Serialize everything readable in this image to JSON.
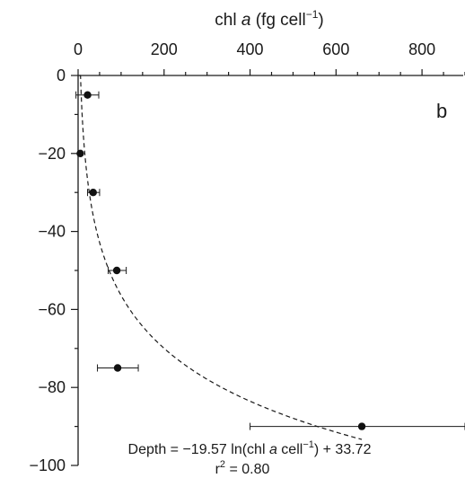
{
  "chart_data": {
    "type": "scatter",
    "title": "",
    "panel_label": "b",
    "xlabel_prefix": "chl ",
    "xlabel_italic": "a",
    "xlabel_units": " (fg cell",
    "xlabel_sup": "−1",
    "xlabel_close": ")",
    "ylabel": "",
    "x_axis_position": "top",
    "xlim": [
      0,
      900
    ],
    "ylim": [
      -100,
      0
    ],
    "x_ticks": [
      0,
      200,
      400,
      600,
      800
    ],
    "x_tick_labels": [
      "0",
      "200",
      "400",
      "600",
      "800"
    ],
    "y_ticks": [
      0,
      -20,
      -40,
      -60,
      -80,
      -100
    ],
    "y_tick_labels": [
      "0",
      "−20",
      "−40",
      "−60",
      "−80",
      "−100"
    ],
    "grid": false,
    "series": [
      {
        "points": [
          {
            "x": 22,
            "y": -5,
            "xerr_low": -5,
            "xerr_high": 48
          },
          {
            "x": 5,
            "y": -20,
            "xerr_low": 0,
            "xerr_high": 8
          },
          {
            "x": 35,
            "y": -30,
            "xerr_low": 22,
            "xerr_high": 50
          },
          {
            "x": 90,
            "y": -50,
            "xerr_low": 70,
            "xerr_high": 112
          },
          {
            "x": 92,
            "y": -75,
            "xerr_low": 45,
            "xerr_high": 140
          },
          {
            "x": 660,
            "y": -90,
            "xerr_low": 400,
            "xerr_high": 900
          }
        ]
      }
    ],
    "fit": {
      "a": -19.57,
      "b": 33.72,
      "x_range": [
        3,
        660
      ],
      "style": "dashed"
    },
    "annotations": {
      "equation_part1": "Depth = −19.57 ln(chl ",
      "equation_italic": "a",
      "equation_part2": " cell",
      "equation_sup": "−1",
      "equation_part3": ") + 33.72",
      "r2_prefix": "r",
      "r2_sup": "2",
      "r2_suffix": " = 0.80"
    }
  }
}
